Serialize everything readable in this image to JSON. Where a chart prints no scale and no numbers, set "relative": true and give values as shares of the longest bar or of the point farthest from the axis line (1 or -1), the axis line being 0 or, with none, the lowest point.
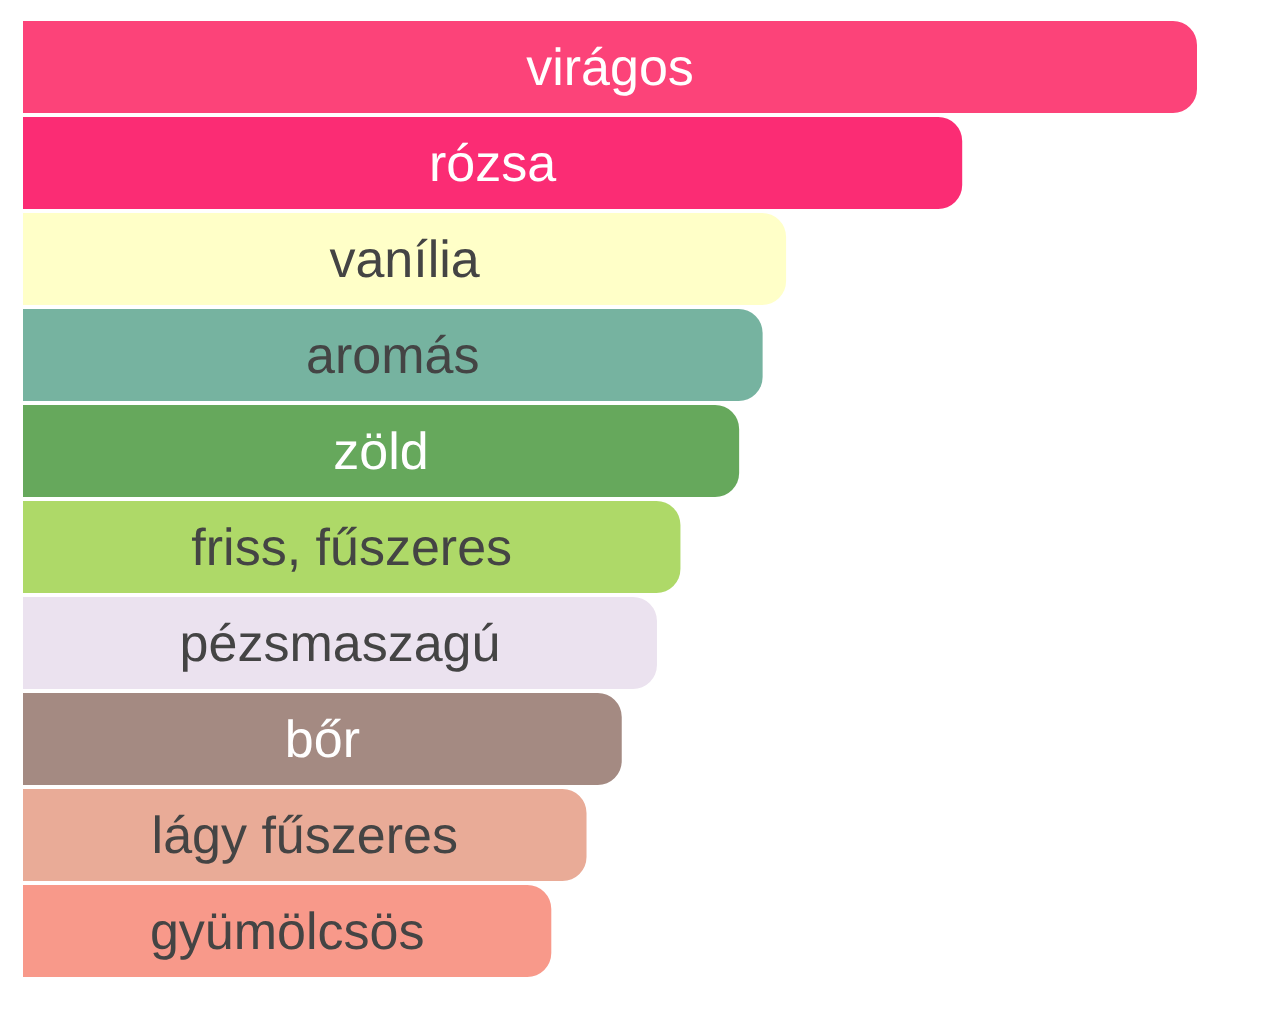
{
  "chart_data": {
    "type": "bar",
    "orientation": "horizontal",
    "relative": true,
    "categories": [
      "virágos",
      "rózsa",
      "vanília",
      "aromás",
      "zöld",
      "friss, fűszeres",
      "pézsmaszagú",
      "bőr",
      "lágy fűszeres",
      "gyümölcsös"
    ],
    "values": [
      1,
      0.8,
      0.65,
      0.63,
      0.61,
      0.56,
      0.54,
      0.51,
      0.48,
      0.45
    ],
    "colors": [
      "#fc4379",
      "#fb2c74",
      "#ffffc8",
      "#76b3a0",
      "#66a85c",
      "#aed968",
      "#ebe2ef",
      "#a48a82",
      "#e9ab97",
      "#f8998a"
    ]
  }
}
